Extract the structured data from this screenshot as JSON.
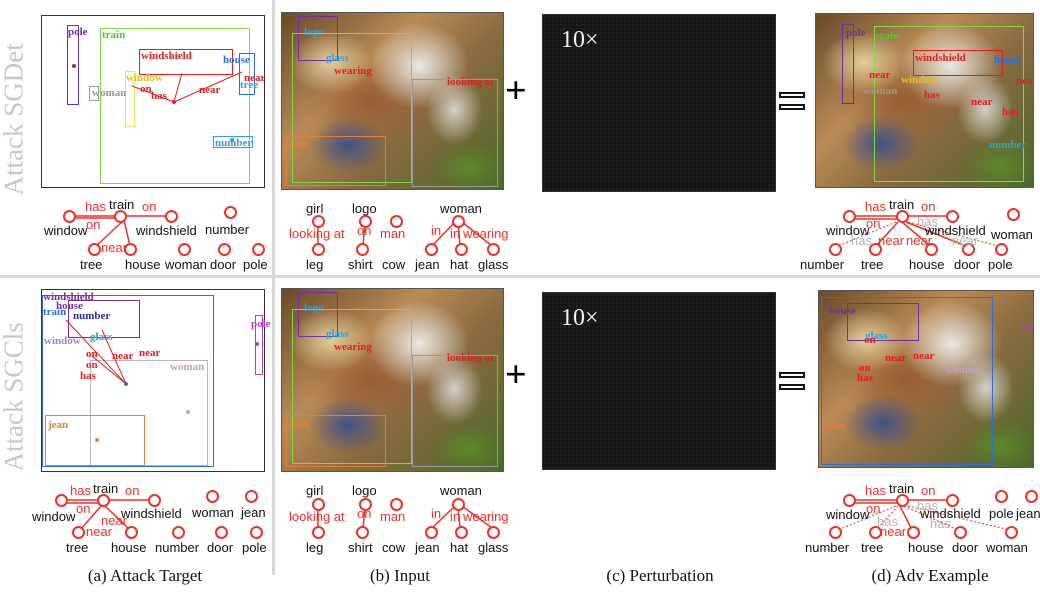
{
  "rows": {
    "top": "Attack SGDet",
    "bottom": "Attack SGCls"
  },
  "captions": {
    "a": "(a) Attack Target",
    "b": "(b) Input",
    "c": "(c) Perturbation",
    "d": "(d) Adv Example"
  },
  "perturbation": {
    "scale": "10×"
  },
  "ops": {
    "plus": "+",
    "equals": "="
  },
  "colors": {
    "red": "#e8322a",
    "grey": "#b5b5b5"
  },
  "box_labels": {
    "pole": "pole",
    "train": "train",
    "windshield": "windshield",
    "house": "house",
    "tree": "tree",
    "window": "window",
    "woman": "woman",
    "number": "number",
    "jean": "jean",
    "near": "near",
    "on": "on",
    "has": "has",
    "wearing": "wearing",
    "logo": "logo",
    "glass": "glass",
    "looking_at": "looking at"
  },
  "graphs": {
    "a_top": {
      "nodes": [
        "window",
        "train",
        "windshield",
        "number",
        "tree",
        "house",
        "woman",
        "door",
        "pole"
      ],
      "preds": [
        "has",
        "on",
        "on",
        "near"
      ]
    },
    "b_top": {
      "nodes": [
        "girl",
        "logo",
        "woman",
        "leg",
        "shirt",
        "cow",
        "jean",
        "hat",
        "glass"
      ],
      "preds": [
        "looking at",
        "on",
        "man",
        "in",
        "in",
        "wearing"
      ]
    },
    "d_top": {
      "nodes": [
        "window",
        "train",
        "windshield",
        "woman",
        "number",
        "tree",
        "house",
        "door",
        "pole"
      ],
      "preds": [
        "has",
        "on",
        "on",
        "has",
        "has",
        "near",
        "near",
        "near"
      ]
    },
    "a_bot": {
      "nodes": [
        "window",
        "train",
        "windshield",
        "woman",
        "jean",
        "tree",
        "house",
        "number",
        "door",
        "pole"
      ],
      "preds": [
        "has",
        "on",
        "on",
        "near",
        "near"
      ]
    },
    "b_bot": {
      "nodes": [
        "girl",
        "logo",
        "woman",
        "leg",
        "shirt",
        "cow",
        "jean",
        "hat",
        "glass"
      ],
      "preds": [
        "looking at",
        "on",
        "man",
        "in",
        "in",
        "wearing"
      ]
    },
    "d_bot": {
      "nodes": [
        "window",
        "train",
        "windshield",
        "pole",
        "jean",
        "number",
        "tree",
        "house",
        "door",
        "woman"
      ],
      "preds": [
        "has",
        "on",
        "on",
        "has",
        "has",
        "near",
        "has"
      ]
    }
  }
}
